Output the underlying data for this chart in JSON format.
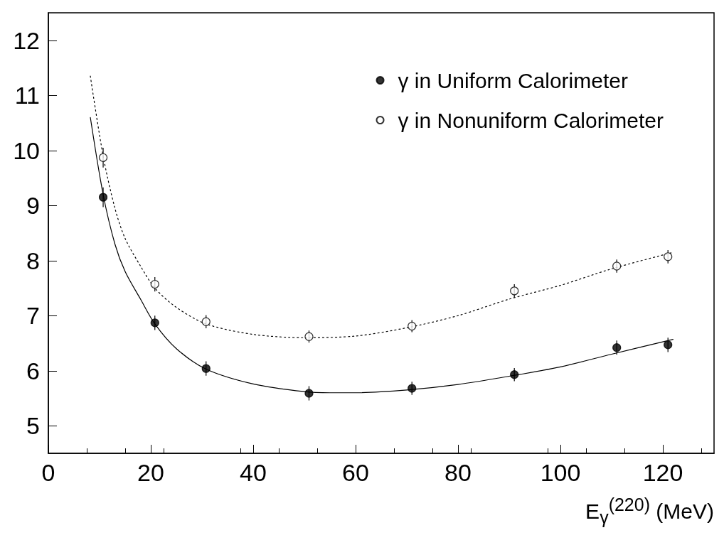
{
  "chart_data": {
    "type": "scatter",
    "xlabel": "E$_{γ}$$^{(220)}$ (MeV)",
    "xlim": [
      0,
      130
    ],
    "xticks": [
      0,
      20,
      40,
      60,
      80,
      100,
      120
    ],
    "ylim": [
      4.5,
      12.5
    ],
    "yticks": [
      5,
      6,
      7,
      8,
      9,
      10,
      11,
      12
    ],
    "grid": false,
    "legend": "top right",
    "marker": "circle",
    "series": [
      {
        "name": "γ in Uniform Calorimeter",
        "color": "#000000",
        "x": [
          10.7,
          20.8,
          30.8,
          50.9,
          71,
          91,
          111,
          121
        ],
        "values": [
          9.15,
          6.87,
          6.04,
          5.59,
          5.68,
          5.93,
          6.42,
          6.47
        ],
        "errors": [
          0.18,
          0.13,
          0.13,
          0.13,
          0.12,
          0.12,
          0.13,
          0.13
        ]
      },
      {
        "name": "γ in Nonuniform Calorimeter",
        "color": "#000000",
        "x": [
          10.7,
          20.8,
          30.8,
          50.9,
          71,
          91,
          111,
          121
        ],
        "values": [
          9.87,
          7.57,
          6.89,
          6.62,
          6.81,
          7.45,
          7.9,
          8.07
        ],
        "errors": [
          0.18,
          0.13,
          0.12,
          0.11,
          0.11,
          0.12,
          0.12,
          0.12
        ]
      },
      {
        "type": "line",
        "color": "#000000",
        "line_style": "solid",
        "marker": "none",
        "x": [
          8.2,
          10.7,
          13,
          15,
          18,
          20.8,
          25,
          30.8,
          40,
          50,
          55,
          60,
          70,
          80,
          90,
          100,
          110,
          122
        ],
        "values": [
          10.6,
          9.2,
          8.3,
          7.8,
          7.3,
          6.85,
          6.4,
          6.03,
          5.76,
          5.62,
          5.6,
          5.6,
          5.65,
          5.75,
          5.9,
          6.07,
          6.3,
          6.57
        ]
      },
      {
        "type": "line",
        "color": "#000000",
        "line_style": "dotted",
        "marker": "none",
        "x": [
          8.2,
          10.7,
          13,
          15,
          18,
          20.8,
          25,
          30.8,
          40,
          50,
          60,
          70,
          80,
          90,
          100,
          110,
          122
        ],
        "values": [
          11.35,
          9.9,
          8.95,
          8.4,
          7.9,
          7.5,
          7.15,
          6.85,
          6.66,
          6.6,
          6.63,
          6.78,
          7.0,
          7.3,
          7.55,
          7.85,
          8.15
        ]
      }
    ]
  }
}
